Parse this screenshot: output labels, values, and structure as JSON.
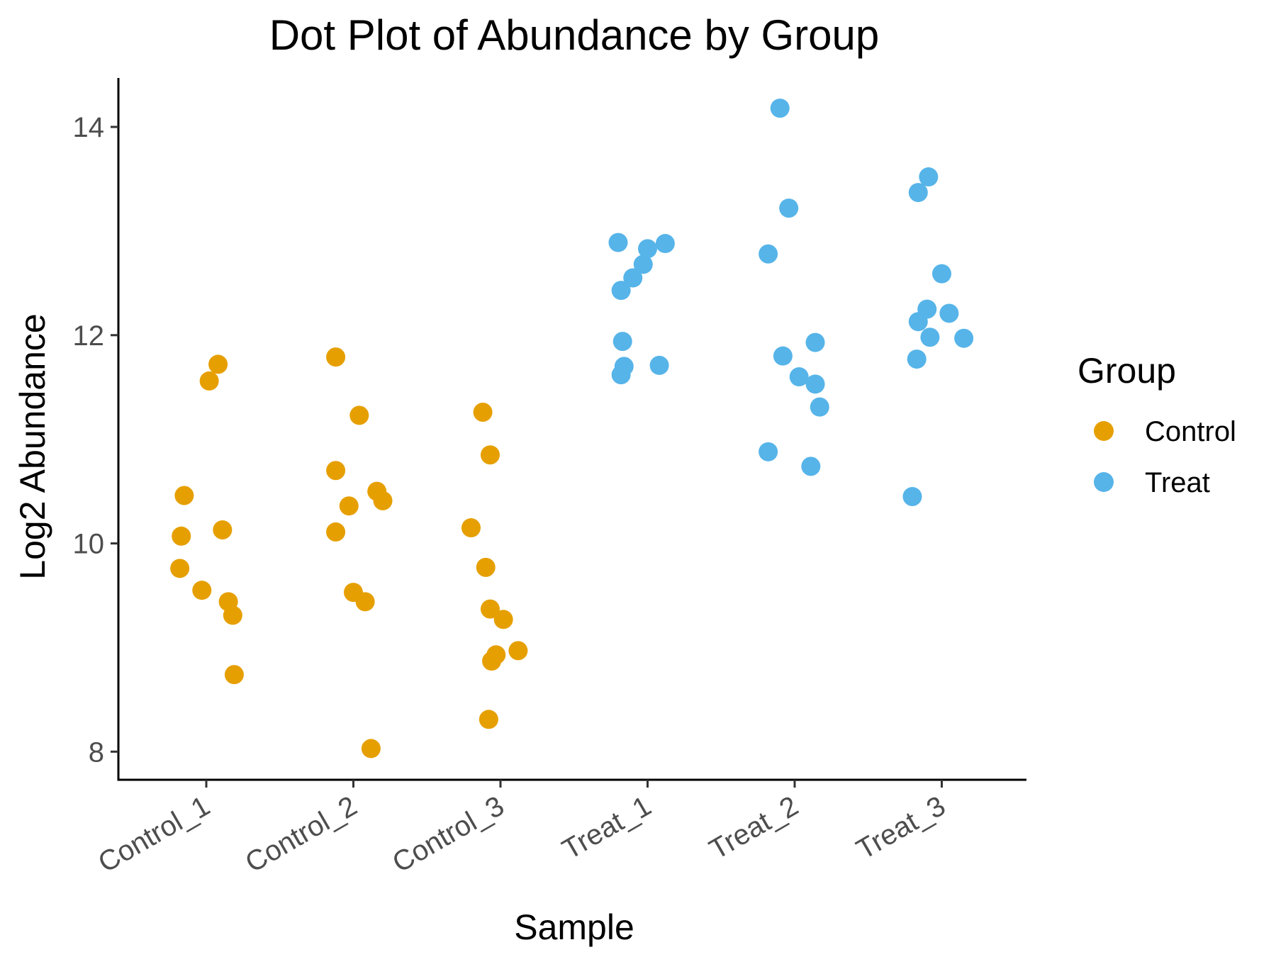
{
  "chart_data": {
    "type": "scatter",
    "title": "Dot Plot of Abundance by Group",
    "xlabel": "Sample",
    "ylabel": "Log2 Abundance",
    "categories": [
      "Control_1",
      "Control_2",
      "Control_3",
      "Treat_1",
      "Treat_2",
      "Treat_3"
    ],
    "yticks": [
      8,
      10,
      12,
      14
    ],
    "ylim": [
      7.73,
      14.47
    ],
    "grid": false,
    "legend": {
      "title": "Group",
      "position": "right",
      "entries": [
        {
          "name": "Control",
          "color": "#E69F00"
        },
        {
          "name": "Treat",
          "color": "#56B4E9"
        }
      ]
    },
    "series": [
      {
        "name": "Control",
        "color": "#E69F00",
        "points": [
          {
            "x": "Control_1",
            "jitter": -0.18,
            "y": 9.76
          },
          {
            "x": "Control_1",
            "jitter": -0.17,
            "y": 10.07
          },
          {
            "x": "Control_1",
            "jitter": -0.15,
            "y": 10.46
          },
          {
            "x": "Control_1",
            "jitter": -0.03,
            "y": 9.55
          },
          {
            "x": "Control_1",
            "jitter": 0.02,
            "y": 11.56
          },
          {
            "x": "Control_1",
            "jitter": 0.08,
            "y": 11.72
          },
          {
            "x": "Control_1",
            "jitter": 0.11,
            "y": 10.13
          },
          {
            "x": "Control_1",
            "jitter": 0.15,
            "y": 9.44
          },
          {
            "x": "Control_1",
            "jitter": 0.18,
            "y": 9.31
          },
          {
            "x": "Control_1",
            "jitter": 0.19,
            "y": 8.74
          },
          {
            "x": "Control_2",
            "jitter": -0.12,
            "y": 11.79
          },
          {
            "x": "Control_2",
            "jitter": -0.12,
            "y": 10.7
          },
          {
            "x": "Control_2",
            "jitter": -0.12,
            "y": 10.11
          },
          {
            "x": "Control_2",
            "jitter": -0.03,
            "y": 10.36
          },
          {
            "x": "Control_2",
            "jitter": 0.0,
            "y": 9.53
          },
          {
            "x": "Control_2",
            "jitter": 0.04,
            "y": 11.23
          },
          {
            "x": "Control_2",
            "jitter": 0.08,
            "y": 9.44
          },
          {
            "x": "Control_2",
            "jitter": 0.12,
            "y": 8.03
          },
          {
            "x": "Control_2",
            "jitter": 0.16,
            "y": 10.5
          },
          {
            "x": "Control_2",
            "jitter": 0.2,
            "y": 10.41
          },
          {
            "x": "Control_3",
            "jitter": -0.2,
            "y": 10.15
          },
          {
            "x": "Control_3",
            "jitter": -0.12,
            "y": 11.26
          },
          {
            "x": "Control_3",
            "jitter": -0.1,
            "y": 9.77
          },
          {
            "x": "Control_3",
            "jitter": -0.07,
            "y": 10.85
          },
          {
            "x": "Control_3",
            "jitter": -0.07,
            "y": 9.37
          },
          {
            "x": "Control_3",
            "jitter": -0.08,
            "y": 8.31
          },
          {
            "x": "Control_3",
            "jitter": -0.06,
            "y": 8.87
          },
          {
            "x": "Control_3",
            "jitter": -0.03,
            "y": 8.93
          },
          {
            "x": "Control_3",
            "jitter": 0.02,
            "y": 9.27
          },
          {
            "x": "Control_3",
            "jitter": 0.12,
            "y": 8.97
          }
        ]
      },
      {
        "name": "Treat",
        "color": "#56B4E9",
        "points": [
          {
            "x": "Treat_1",
            "jitter": -0.2,
            "y": 12.89
          },
          {
            "x": "Treat_1",
            "jitter": -0.18,
            "y": 12.43
          },
          {
            "x": "Treat_1",
            "jitter": -0.18,
            "y": 11.62
          },
          {
            "x": "Treat_1",
            "jitter": -0.17,
            "y": 11.94
          },
          {
            "x": "Treat_1",
            "jitter": -0.16,
            "y": 11.7
          },
          {
            "x": "Treat_1",
            "jitter": -0.1,
            "y": 12.55
          },
          {
            "x": "Treat_1",
            "jitter": -0.03,
            "y": 12.68
          },
          {
            "x": "Treat_1",
            "jitter": 0.0,
            "y": 12.83
          },
          {
            "x": "Treat_1",
            "jitter": 0.08,
            "y": 11.71
          },
          {
            "x": "Treat_1",
            "jitter": 0.12,
            "y": 12.88
          },
          {
            "x": "Treat_2",
            "jitter": -0.18,
            "y": 12.78
          },
          {
            "x": "Treat_2",
            "jitter": -0.18,
            "y": 10.88
          },
          {
            "x": "Treat_2",
            "jitter": -0.1,
            "y": 14.18
          },
          {
            "x": "Treat_2",
            "jitter": -0.08,
            "y": 11.8
          },
          {
            "x": "Treat_2",
            "jitter": -0.04,
            "y": 13.22
          },
          {
            "x": "Treat_2",
            "jitter": 0.03,
            "y": 11.6
          },
          {
            "x": "Treat_2",
            "jitter": 0.11,
            "y": 10.74
          },
          {
            "x": "Treat_2",
            "jitter": 0.14,
            "y": 11.53
          },
          {
            "x": "Treat_2",
            "jitter": 0.14,
            "y": 11.93
          },
          {
            "x": "Treat_2",
            "jitter": 0.17,
            "y": 11.31
          },
          {
            "x": "Treat_3",
            "jitter": -0.2,
            "y": 10.45
          },
          {
            "x": "Treat_3",
            "jitter": -0.17,
            "y": 11.77
          },
          {
            "x": "Treat_3",
            "jitter": -0.16,
            "y": 13.37
          },
          {
            "x": "Treat_3",
            "jitter": -0.16,
            "y": 12.13
          },
          {
            "x": "Treat_3",
            "jitter": -0.1,
            "y": 12.25
          },
          {
            "x": "Treat_3",
            "jitter": -0.09,
            "y": 13.52
          },
          {
            "x": "Treat_3",
            "jitter": -0.08,
            "y": 11.98
          },
          {
            "x": "Treat_3",
            "jitter": 0.0,
            "y": 12.59
          },
          {
            "x": "Treat_3",
            "jitter": 0.05,
            "y": 12.21
          },
          {
            "x": "Treat_3",
            "jitter": 0.15,
            "y": 11.97
          }
        ]
      }
    ]
  }
}
